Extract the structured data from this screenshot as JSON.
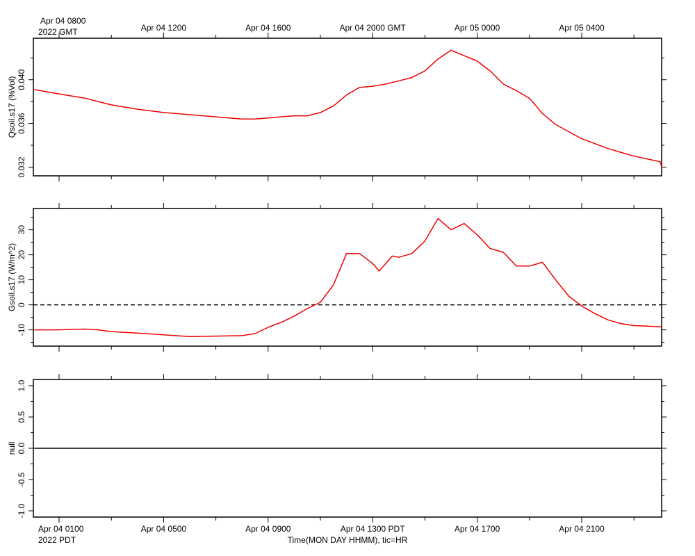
{
  "top_axis": {
    "first_label_line1": "Apr 04 0800",
    "first_label_line2": "2022 GMT",
    "labels": [
      "Apr 04 1200",
      "Apr 04 1600",
      "Apr 04 2000 GMT",
      "Apr 05 0000",
      "Apr 05 0400"
    ]
  },
  "bottom_axis": {
    "first_label_line1": "Apr 04 0100",
    "first_label_line2": "2022 PDT",
    "labels": [
      "Apr 04 0500",
      "Apr 04 0900",
      "Apr 04 1300 PDT",
      "Apr 04 1700",
      "Apr 04 2100"
    ],
    "title": "Time(MON DAY HHMM), tic=HR"
  },
  "colors": {
    "series": "#ee0000",
    "axes": "#000000",
    "zero_line": "#000000"
  },
  "chart_data": [
    {
      "type": "line",
      "ylabel": "Qsoil.s17 (%Vol)",
      "ylim": [
        0.0312,
        0.0438
      ],
      "yticks": [
        "0.032",
        "0.036",
        "0.040"
      ],
      "ytick_values": [
        0.032,
        0.036,
        0.04
      ],
      "x_unit": "hours since Apr 04 0100 PDT",
      "xlim": [
        0,
        24
      ],
      "series": [
        {
          "x": [
            -0.95,
            0,
            1,
            2,
            3,
            4,
            5,
            6,
            6.5,
            7,
            7.5,
            8,
            8.5,
            9,
            9.5,
            10,
            10.5,
            11,
            11.5,
            12,
            12.5,
            13,
            13.5,
            14,
            14.5,
            15,
            15.5,
            16,
            16.5,
            17,
            17.5,
            18,
            18.5,
            19,
            20,
            21,
            22,
            23,
            24
          ],
          "y": [
            0.0391,
            0.0387,
            0.0383,
            0.0377,
            0.0373,
            0.037,
            0.0368,
            0.0366,
            0.0365,
            0.0364,
            0.0364,
            0.0365,
            0.0366,
            0.0367,
            0.0367,
            0.037,
            0.0376,
            0.0386,
            0.0393,
            0.0394,
            0.0396,
            0.0399,
            0.0402,
            0.0408,
            0.0419,
            0.0427,
            0.0422,
            0.0417,
            0.0408,
            0.0396,
            0.039,
            0.0383,
            0.0369,
            0.0359,
            0.0346,
            0.0337,
            0.033,
            0.0325,
            0.032
          ]
        }
      ]
    },
    {
      "type": "line",
      "ylabel": "Gsoil.s17 (W/m^2)",
      "ylim": [
        -16.5,
        38.5
      ],
      "yticks": [
        "-10",
        "0",
        "10",
        "20",
        "30"
      ],
      "ytick_values": [
        -10,
        0,
        10,
        20,
        30
      ],
      "xlim": [
        0,
        24
      ],
      "zero_line": 0,
      "series": [
        {
          "x": [
            -0.95,
            0,
            0.5,
            1,
            1.5,
            2,
            2.5,
            3,
            4,
            5,
            6,
            7,
            7.5,
            8,
            8.5,
            9,
            9.5,
            10,
            10.5,
            11,
            11.5,
            12,
            12.25,
            12.5,
            12.75,
            13,
            13.5,
            14,
            14.5,
            15,
            15.5,
            16,
            16.5,
            17,
            17.5,
            18,
            18.5,
            19,
            19.5,
            20,
            20.5,
            21,
            21.5,
            22,
            22.5,
            23,
            24
          ],
          "y": [
            -10,
            -10,
            -9.8,
            -9.7,
            -10,
            -10.7,
            -11,
            -11.3,
            -12,
            -12.7,
            -12.5,
            -12.3,
            -11.5,
            -9,
            -7,
            -4.5,
            -1.5,
            1,
            8,
            20.5,
            20.5,
            16.5,
            13.5,
            16.5,
            19.5,
            19,
            20.5,
            25.5,
            34.5,
            30,
            32.5,
            28,
            22.5,
            21,
            15.5,
            15.5,
            17,
            10,
            3.5,
            -0.5,
            -3.5,
            -6,
            -7.5,
            -8.3,
            -8.5,
            -8.8,
            -8.5
          ]
        }
      ]
    },
    {
      "type": "line",
      "ylabel": "null",
      "ylim": [
        -1.1,
        1.1
      ],
      "yticks": [
        "-1.0",
        "-0.5",
        "0.0",
        "0.5",
        "1.0"
      ],
      "ytick_values": [
        -1.0,
        -0.5,
        0.0,
        0.5,
        1.0
      ],
      "xlim": [
        0,
        24
      ],
      "series": [
        {
          "x": [
            -0.95,
            24
          ],
          "y": [
            0,
            0
          ]
        }
      ]
    }
  ]
}
